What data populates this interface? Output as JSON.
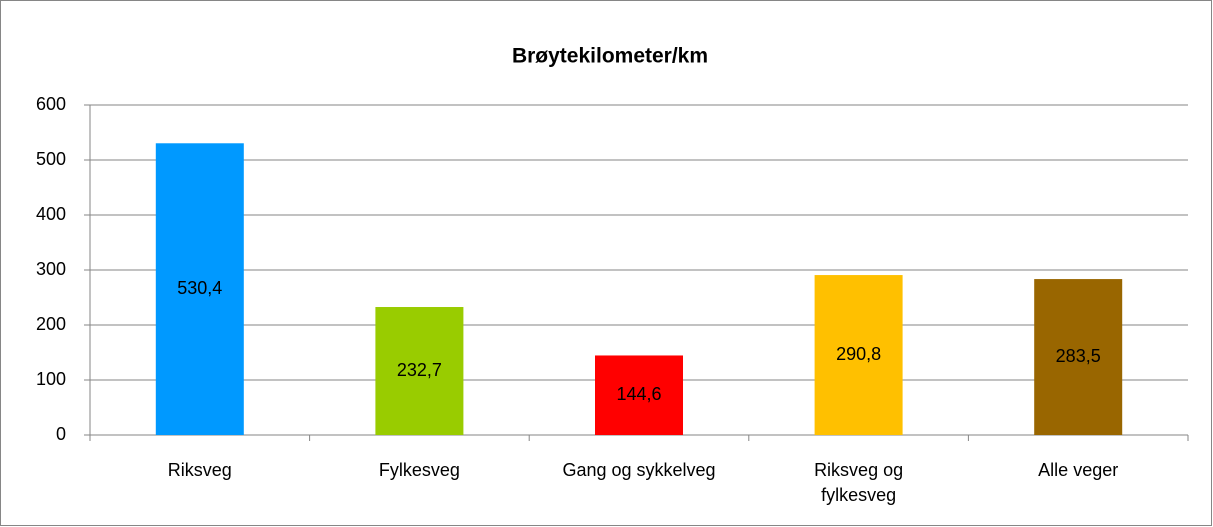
{
  "chart_data": {
    "type": "bar",
    "title": "Brøytekilometer/km",
    "categories": [
      "Riksveg",
      "Fylkesveg",
      "Gang og sykkelveg",
      "Riksveg og fylkesveg",
      "Alle veger"
    ],
    "values": [
      530.4,
      232.7,
      144.6,
      290.8,
      283.5
    ],
    "value_labels": [
      "530,4",
      "232,7",
      "144,6",
      "290,8",
      "283,5"
    ],
    "colors": [
      "#0099ff",
      "#99cc00",
      "#ff0000",
      "#ffc000",
      "#996600"
    ],
    "ylim": [
      0,
      600
    ],
    "yticks": [
      0,
      100,
      200,
      300,
      400,
      500,
      600
    ],
    "grid": true
  }
}
